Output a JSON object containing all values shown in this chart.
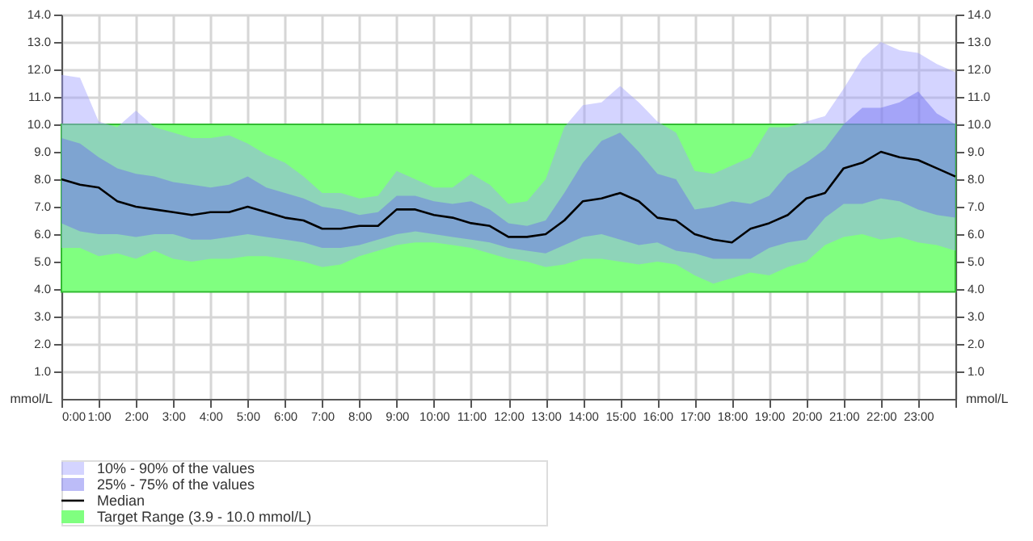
{
  "chart_data": {
    "type": "line",
    "xlim": [
      0,
      24
    ],
    "ylim": [
      0,
      14
    ],
    "y2lim": [
      0,
      14
    ],
    "grid": true,
    "legend": "bottom left",
    "ylabel": "mmol/L",
    "y2label": "mmol/L",
    "xticks": [
      {
        "value": 0,
        "label": "0:00"
      },
      {
        "value": 1,
        "label": "1:00"
      },
      {
        "value": 2,
        "label": "2:00"
      },
      {
        "value": 3,
        "label": "3:00"
      },
      {
        "value": 4,
        "label": "4:00"
      },
      {
        "value": 5,
        "label": "5:00"
      },
      {
        "value": 6,
        "label": "6:00"
      },
      {
        "value": 7,
        "label": "7:00"
      },
      {
        "value": 8,
        "label": "8:00"
      },
      {
        "value": 9,
        "label": "9:00"
      },
      {
        "value": 10,
        "label": "10:00"
      },
      {
        "value": 11,
        "label": "11:00"
      },
      {
        "value": 12,
        "label": "12:00"
      },
      {
        "value": 13,
        "label": "13:00"
      },
      {
        "value": 14,
        "label": "14:00"
      },
      {
        "value": 15,
        "label": "15:00"
      },
      {
        "value": 16,
        "label": "16:00"
      },
      {
        "value": 17,
        "label": "17:00"
      },
      {
        "value": 18,
        "label": "18:00"
      },
      {
        "value": 19,
        "label": "19:00"
      },
      {
        "value": 20,
        "label": "20:00"
      },
      {
        "value": 21,
        "label": "21:00"
      },
      {
        "value": 22,
        "label": "22:00"
      },
      {
        "value": 23,
        "label": "23:00"
      },
      {
        "value": 24,
        "label": null
      }
    ],
    "yticks": [
      {
        "value": 1,
        "label": "1.0"
      },
      {
        "value": 2,
        "label": "2.0"
      },
      {
        "value": 3,
        "label": "3.0"
      },
      {
        "value": 4,
        "label": "4.0"
      },
      {
        "value": 5,
        "label": "5.0"
      },
      {
        "value": 6,
        "label": "6.0"
      },
      {
        "value": 7,
        "label": "7.0"
      },
      {
        "value": 8,
        "label": "8.0"
      },
      {
        "value": 9,
        "label": "9.0"
      },
      {
        "value": 10,
        "label": "10.0"
      },
      {
        "value": 11,
        "label": "11.0"
      },
      {
        "value": 12,
        "label": "12.0"
      },
      {
        "value": 13,
        "label": "13.0"
      },
      {
        "value": 14,
        "label": "14.0"
      }
    ],
    "y2ticks": [
      {
        "value": 1,
        "label": "1.0"
      },
      {
        "value": 2,
        "label": "2.0"
      },
      {
        "value": 3,
        "label": "3.0"
      },
      {
        "value": 4,
        "label": "4.0"
      },
      {
        "value": 5,
        "label": "5.0"
      },
      {
        "value": 6,
        "label": "6.0"
      },
      {
        "value": 7,
        "label": "7.0"
      },
      {
        "value": 8,
        "label": "8.0"
      },
      {
        "value": 9,
        "label": "9.0"
      },
      {
        "value": 10,
        "label": "10.0"
      },
      {
        "value": 11,
        "label": "11.0"
      },
      {
        "value": 12,
        "label": "12.0"
      },
      {
        "value": 13,
        "label": "13.0"
      },
      {
        "value": 14,
        "label": "14.0"
      }
    ],
    "x": [
      0,
      0.5,
      1,
      1.5,
      2,
      2.5,
      3,
      3.5,
      4,
      4.5,
      5,
      5.5,
      6,
      6.5,
      7,
      7.5,
      8,
      8.5,
      9,
      9.5,
      10,
      10.5,
      11,
      11.5,
      12,
      12.5,
      13,
      13.5,
      14,
      14.5,
      15,
      15.5,
      16,
      16.5,
      17,
      17.5,
      18,
      18.5,
      19,
      19.5,
      20,
      20.5,
      21,
      21.5,
      22,
      22.5,
      23,
      23.5,
      24
    ],
    "series": [
      {
        "name": "10% - 90% of the values",
        "type": "line",
        "color": "#a0a0ff",
        "values": [
          null,
          null,
          null,
          null,
          null,
          null,
          null,
          null,
          null,
          null,
          null,
          null,
          null,
          null,
          null,
          null,
          null,
          null,
          null,
          null,
          null,
          null,
          null,
          null,
          null,
          null,
          null,
          null,
          null,
          null,
          null,
          null,
          null,
          null,
          null,
          null,
          null,
          null,
          null,
          null,
          null,
          null,
          null,
          null,
          null,
          null,
          null,
          null,
          null
        ],
        "upper": [
          11.8,
          11.7,
          10.1,
          9.9,
          10.5,
          9.9,
          9.7,
          9.5,
          9.5,
          9.6,
          9.3,
          8.9,
          8.6,
          8.1,
          7.5,
          7.5,
          7.3,
          7.4,
          8.3,
          8.0,
          7.7,
          7.7,
          8.2,
          7.8,
          7.1,
          7.2,
          8.0,
          9.9,
          10.7,
          10.8,
          11.4,
          10.8,
          10.1,
          9.7,
          8.3,
          8.2,
          8.5,
          8.8,
          9.9,
          9.9,
          10.1,
          10.3,
          11.3,
          12.4,
          13.0,
          12.7,
          12.6,
          12.2,
          11.9
        ],
        "lower": [
          5.5,
          5.5,
          5.2,
          5.3,
          5.1,
          5.4,
          5.1,
          5.0,
          5.1,
          5.1,
          5.2,
          5.2,
          5.1,
          5.0,
          4.8,
          4.9,
          5.2,
          5.4,
          5.6,
          5.7,
          5.7,
          5.6,
          5.5,
          5.3,
          5.1,
          5.0,
          4.8,
          4.9,
          5.1,
          5.1,
          5.0,
          4.9,
          5.0,
          4.9,
          4.5,
          4.2,
          4.4,
          4.6,
          4.5,
          4.8,
          5.0,
          5.6,
          5.9,
          6.0,
          5.8,
          5.9,
          5.7,
          5.6,
          5.4
        ]
      },
      {
        "name": "25% - 75% of the values",
        "type": "line",
        "color": "#6a6af0",
        "values": [
          null,
          null,
          null,
          null,
          null,
          null,
          null,
          null,
          null,
          null,
          null,
          null,
          null,
          null,
          null,
          null,
          null,
          null,
          null,
          null,
          null,
          null,
          null,
          null,
          null,
          null,
          null,
          null,
          null,
          null,
          null,
          null,
          null,
          null,
          null,
          null,
          null,
          null,
          null,
          null,
          null,
          null,
          null,
          null,
          null,
          null,
          null,
          null,
          null
        ],
        "upper": [
          9.5,
          9.3,
          8.8,
          8.4,
          8.2,
          8.1,
          7.9,
          7.8,
          7.7,
          7.8,
          8.1,
          7.7,
          7.5,
          7.3,
          7.0,
          6.9,
          6.7,
          6.8,
          7.4,
          7.4,
          7.2,
          7.1,
          7.2,
          6.9,
          6.4,
          6.3,
          6.5,
          7.5,
          8.6,
          9.4,
          9.7,
          9.0,
          8.2,
          8.0,
          6.9,
          7.0,
          7.2,
          7.1,
          7.4,
          8.2,
          8.6,
          9.1,
          10.0,
          10.6,
          10.6,
          10.8,
          11.2,
          10.4,
          10.0
        ],
        "lower": [
          6.4,
          6.1,
          6.0,
          6.0,
          5.9,
          6.0,
          6.0,
          5.8,
          5.8,
          5.9,
          6.0,
          5.9,
          5.8,
          5.7,
          5.5,
          5.5,
          5.6,
          5.8,
          6.0,
          6.1,
          6.0,
          5.9,
          5.8,
          5.7,
          5.5,
          5.4,
          5.3,
          5.6,
          5.9,
          6.0,
          5.8,
          5.6,
          5.7,
          5.4,
          5.3,
          5.1,
          5.1,
          5.1,
          5.5,
          5.7,
          5.8,
          6.6,
          7.1,
          7.1,
          7.3,
          7.2,
          6.9,
          6.7,
          6.6
        ]
      },
      {
        "name": "Median",
        "type": "line",
        "color": "#000000",
        "values": [
          8.0,
          7.8,
          7.7,
          7.2,
          7.0,
          6.9,
          6.8,
          6.7,
          6.8,
          6.8,
          7.0,
          6.8,
          6.6,
          6.5,
          6.2,
          6.2,
          6.3,
          6.3,
          6.9,
          6.9,
          6.7,
          6.6,
          6.4,
          6.3,
          5.9,
          5.9,
          6.0,
          6.5,
          7.2,
          7.3,
          7.5,
          7.2,
          6.6,
          6.5,
          6.0,
          5.8,
          5.7,
          6.2,
          6.4,
          6.7,
          7.3,
          7.5,
          8.4,
          8.6,
          9.0,
          8.8,
          8.7,
          8.4,
          8.1
        ]
      }
    ],
    "bands": [
      {
        "axis": "y",
        "from": 3.9,
        "to": 10.0,
        "label": "Target Range (3.9 - 10.0 mmol/L)",
        "color": "#80ff80"
      }
    ]
  }
}
